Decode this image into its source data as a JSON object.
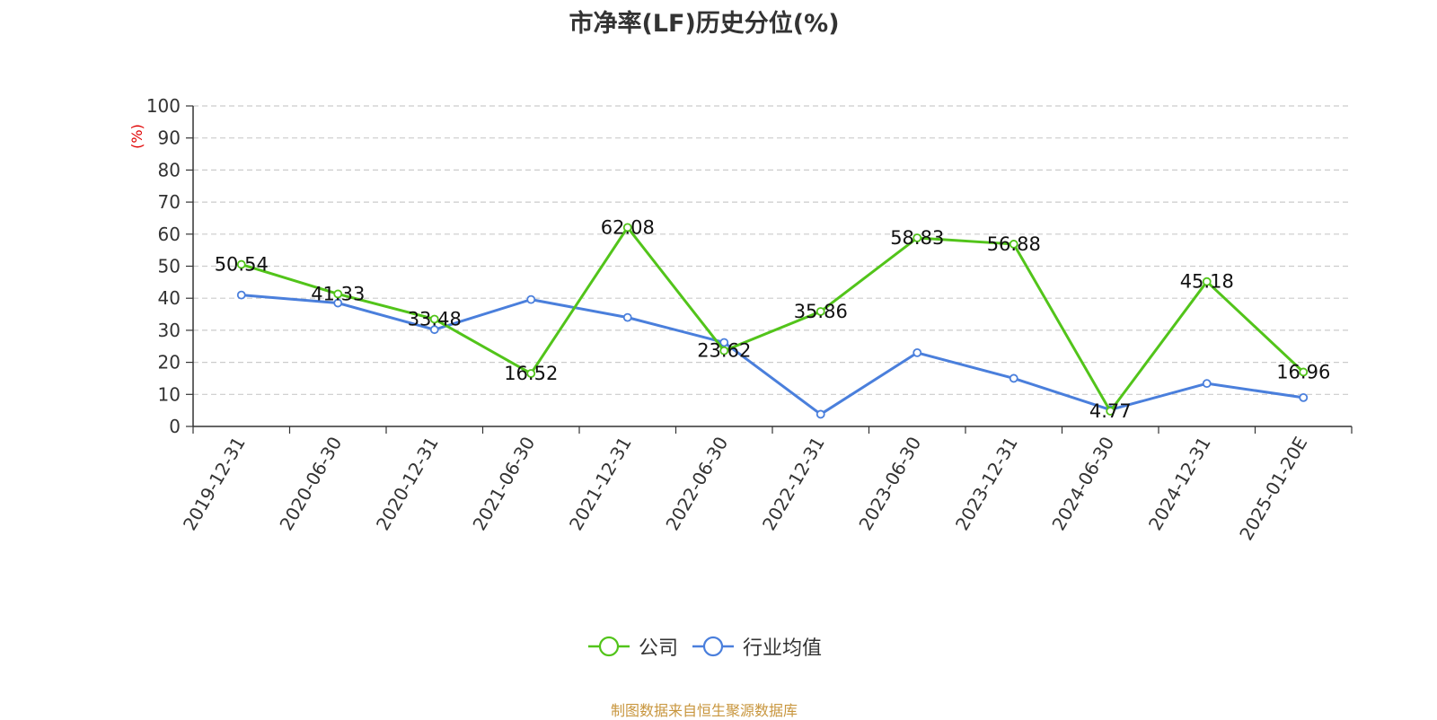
{
  "title": "市净率(LF)历史分位(%)",
  "ylabel": "(%)",
  "footer": "制图数据来自恒生聚源数据库",
  "chart_data": {
    "type": "line",
    "title": "市净率(LF)历史分位(%)",
    "ylabel": "(%)",
    "ylim": [
      0,
      100
    ],
    "yticks": [
      0,
      10,
      20,
      30,
      40,
      50,
      60,
      70,
      80,
      90,
      100
    ],
    "grid": true,
    "legend_position": "bottom",
    "categories": [
      "2019-12-31",
      "2020-06-30",
      "2020-12-31",
      "2021-06-30",
      "2021-12-31",
      "2022-06-30",
      "2022-12-31",
      "2023-06-30",
      "2023-12-31",
      "2024-06-30",
      "2024-12-31",
      "2025-01-20E"
    ],
    "series": [
      {
        "name": "公司",
        "color": "#52c41a",
        "values": [
          50.54,
          41.33,
          33.48,
          16.52,
          62.08,
          23.62,
          35.86,
          58.83,
          56.88,
          4.77,
          45.18,
          16.96
        ],
        "labels": [
          "50.54",
          "41.33",
          "33.48",
          "16.52",
          "62.08",
          "23.62",
          "35.86",
          "58.83",
          "56.88",
          "4.77",
          "45.18",
          "16.96"
        ]
      },
      {
        "name": "行业均值",
        "color": "#4a7fdc",
        "values": [
          41.0,
          38.5,
          30.2,
          39.6,
          34.0,
          26.2,
          3.8,
          23.0,
          15.0,
          5.2,
          13.4,
          9.0
        ]
      }
    ]
  }
}
